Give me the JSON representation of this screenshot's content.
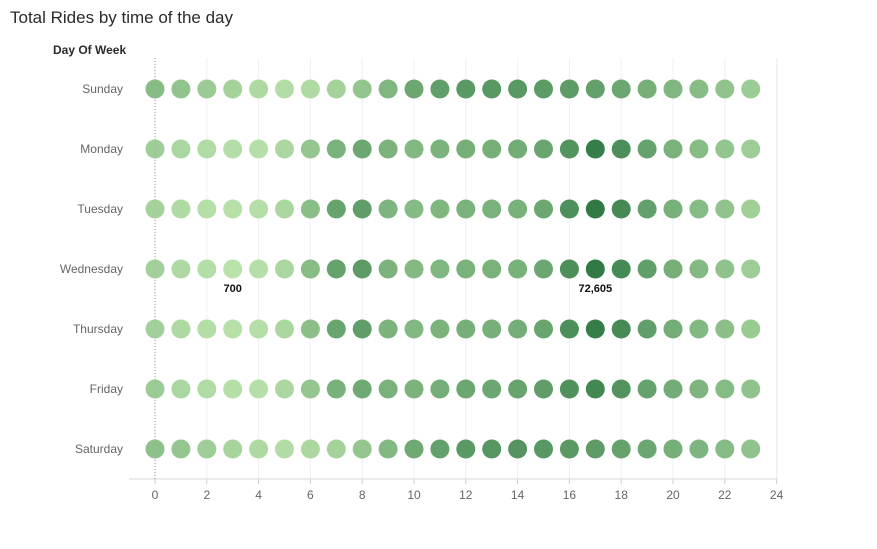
{
  "title": "Total Rides by time of the day",
  "row_header": "Day Of Week",
  "chart_data": {
    "type": "heatmap",
    "title": "Total Rides by time of the day",
    "row_field": "Day Of Week",
    "rows": [
      "Sunday",
      "Monday",
      "Tuesday",
      "Wednesday",
      "Thursday",
      "Friday",
      "Saturday"
    ],
    "x_ticks": [
      0,
      2,
      4,
      6,
      8,
      10,
      12,
      14,
      16,
      18,
      20,
      22,
      24
    ],
    "xlim": [
      -1,
      24
    ],
    "hours": [
      0,
      1,
      2,
      3,
      4,
      5,
      6,
      7,
      8,
      9,
      10,
      11,
      12,
      13,
      14,
      15,
      16,
      17,
      18,
      19,
      20,
      21,
      22,
      23
    ],
    "color_min": "#b4e0a4",
    "color_max": "#1f6e35",
    "value_range": [
      700,
      72605
    ],
    "values": [
      [
        27000,
        22000,
        17000,
        12000,
        7000,
        4500,
        6500,
        12000,
        21000,
        31000,
        41000,
        47000,
        51000,
        52000,
        52000,
        50000,
        49000,
        46000,
        41000,
        36000,
        31000,
        27000,
        22000,
        16000
      ],
      [
        15000,
        9000,
        6000,
        4000,
        3500,
        8000,
        20000,
        34000,
        41000,
        33000,
        30000,
        33000,
        36000,
        36000,
        38000,
        43000,
        55000,
        70000,
        58000,
        45000,
        34000,
        27000,
        21000,
        15000
      ],
      [
        12000,
        6500,
        3500,
        2500,
        3000,
        9000,
        26000,
        44000,
        48000,
        32000,
        28000,
        31000,
        34000,
        34000,
        35000,
        41000,
        57000,
        72000,
        62000,
        46000,
        35000,
        28000,
        22000,
        14000
      ],
      [
        13000,
        7000,
        4000,
        700,
        3000,
        9000,
        27000,
        45000,
        50000,
        33000,
        29000,
        31000,
        34000,
        34000,
        35000,
        41000,
        58000,
        72605,
        62000,
        47000,
        36000,
        29000,
        23000,
        15000
      ],
      [
        13000,
        7000,
        4000,
        2500,
        3000,
        9000,
        25000,
        43000,
        48000,
        33000,
        30000,
        33000,
        36000,
        36000,
        37000,
        43000,
        58000,
        70000,
        61000,
        47000,
        37000,
        30000,
        25000,
        18000
      ],
      [
        16000,
        9000,
        5500,
        3500,
        3500,
        8000,
        20000,
        35000,
        40000,
        34000,
        33000,
        37000,
        41000,
        42000,
        44000,
        48000,
        56000,
        63000,
        55000,
        45000,
        38000,
        32000,
        28000,
        23000
      ],
      [
        24000,
        20000,
        15000,
        11000,
        7000,
        5000,
        8000,
        12000,
        20000,
        30000,
        40000,
        46000,
        51000,
        53000,
        54000,
        52000,
        51000,
        49000,
        45000,
        41000,
        36000,
        32000,
        28000,
        23000
      ]
    ],
    "annotations": [
      {
        "row": "Wednesday",
        "hour": 3,
        "label": "700"
      },
      {
        "row": "Wednesday",
        "hour": 17,
        "label": "72,605"
      }
    ],
    "grid": true,
    "legend": "none"
  }
}
